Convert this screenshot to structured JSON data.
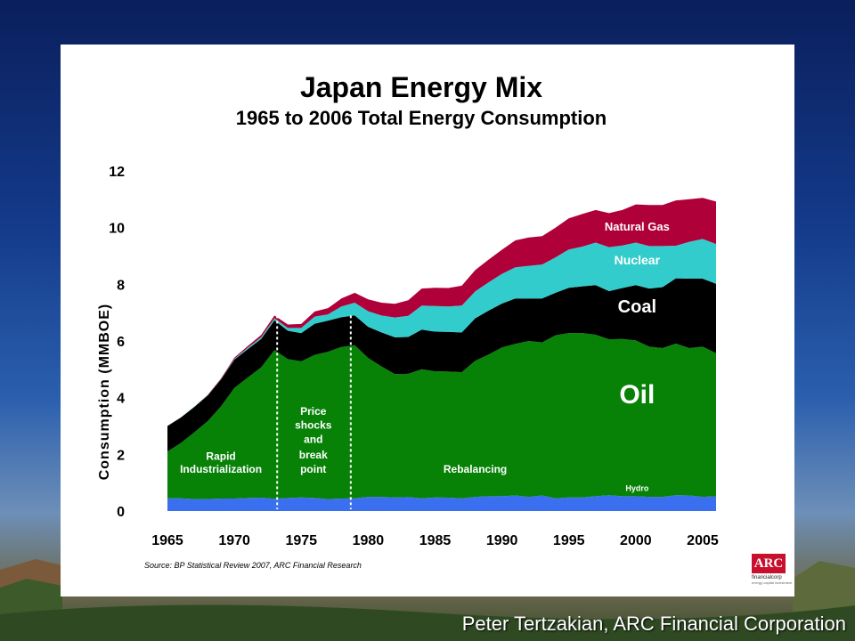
{
  "title": "Japan Energy Mix",
  "subtitle": "1965 to 2006 Total Energy Consumption",
  "source": "Source: BP Statistical Review 2007, ARC Financial Research",
  "footer": "Peter Tertzakian, ARC Financial Corporation",
  "logo": {
    "text": "ARC",
    "sub": "financialcorp",
    "tag": "energy capital investment"
  },
  "chart_data": {
    "type": "area",
    "stacked": true,
    "ylabel": "Consumption (MMBOE)",
    "xlabel": "",
    "ylim": [
      0,
      12
    ],
    "xlim": [
      1965,
      2006
    ],
    "yticks": [
      "0",
      "2",
      "4",
      "6",
      "8",
      "10",
      "12"
    ],
    "xticks": [
      "1965",
      "1970",
      "1975",
      "1980",
      "1985",
      "1990",
      "1995",
      "2000",
      "2005"
    ],
    "grid": false,
    "legend": "inline labels",
    "x": [
      1965,
      1966,
      1967,
      1968,
      1969,
      1970,
      1971,
      1972,
      1973,
      1974,
      1975,
      1976,
      1977,
      1978,
      1979,
      1980,
      1981,
      1982,
      1983,
      1984,
      1985,
      1986,
      1987,
      1988,
      1989,
      1990,
      1991,
      1992,
      1993,
      1994,
      1995,
      1996,
      1997,
      1998,
      1999,
      2000,
      2001,
      2002,
      2003,
      2004,
      2005,
      2006
    ],
    "series": [
      {
        "name": "Hydro",
        "color": "#3a6ff0",
        "values": [
          0.45,
          0.45,
          0.42,
          0.42,
          0.44,
          0.44,
          0.46,
          0.47,
          0.43,
          0.46,
          0.48,
          0.46,
          0.42,
          0.44,
          0.45,
          0.5,
          0.5,
          0.48,
          0.49,
          0.45,
          0.48,
          0.47,
          0.45,
          0.5,
          0.52,
          0.52,
          0.55,
          0.5,
          0.55,
          0.45,
          0.48,
          0.48,
          0.52,
          0.56,
          0.52,
          0.52,
          0.5,
          0.5,
          0.56,
          0.55,
          0.5,
          0.52
        ]
      },
      {
        "name": "Oil",
        "color": "#078207",
        "values": [
          1.65,
          1.95,
          2.35,
          2.75,
          3.25,
          3.9,
          4.25,
          4.6,
          5.25,
          4.9,
          4.8,
          5.05,
          5.2,
          5.35,
          5.4,
          4.9,
          4.6,
          4.35,
          4.35,
          4.55,
          4.45,
          4.45,
          4.45,
          4.8,
          5.0,
          5.25,
          5.35,
          5.5,
          5.4,
          5.75,
          5.8,
          5.8,
          5.7,
          5.5,
          5.55,
          5.5,
          5.3,
          5.25,
          5.35,
          5.2,
          5.3,
          5.05
        ]
      },
      {
        "name": "Coal",
        "color": "#000000",
        "values": [
          0.9,
          0.9,
          0.9,
          0.9,
          0.95,
          1.0,
          1.0,
          1.0,
          1.05,
          1.0,
          1.0,
          1.1,
          1.1,
          1.05,
          1.05,
          1.1,
          1.2,
          1.3,
          1.3,
          1.4,
          1.4,
          1.4,
          1.4,
          1.5,
          1.55,
          1.55,
          1.6,
          1.5,
          1.55,
          1.5,
          1.6,
          1.65,
          1.75,
          1.7,
          1.8,
          1.95,
          2.05,
          2.15,
          2.3,
          2.45,
          2.4,
          2.45
        ]
      },
      {
        "name": "Nuclear",
        "color": "#33cccc",
        "values": [
          0.0,
          0.0,
          0.01,
          0.01,
          0.01,
          0.03,
          0.05,
          0.06,
          0.07,
          0.1,
          0.18,
          0.25,
          0.22,
          0.38,
          0.45,
          0.55,
          0.6,
          0.7,
          0.75,
          0.85,
          0.9,
          0.9,
          0.95,
          0.95,
          1.0,
          1.05,
          1.1,
          1.15,
          1.2,
          1.25,
          1.35,
          1.4,
          1.5,
          1.55,
          1.5,
          1.5,
          1.5,
          1.45,
          1.15,
          1.3,
          1.4,
          1.4
        ]
      },
      {
        "name": "Natural Gas",
        "color": "#b0003a",
        "values": [
          0.0,
          0.0,
          0.0,
          0.01,
          0.02,
          0.04,
          0.06,
          0.08,
          0.1,
          0.12,
          0.14,
          0.18,
          0.22,
          0.28,
          0.35,
          0.42,
          0.45,
          0.48,
          0.55,
          0.6,
          0.65,
          0.65,
          0.7,
          0.75,
          0.8,
          0.85,
          0.95,
          1.0,
          1.0,
          1.05,
          1.1,
          1.15,
          1.15,
          1.2,
          1.25,
          1.35,
          1.45,
          1.45,
          1.6,
          1.5,
          1.45,
          1.5
        ]
      }
    ],
    "annotations": {
      "dividers": [
        1973.2,
        1978.7
      ],
      "labels": [
        {
          "text": "Rapid",
          "x": 1969.0,
          "y": 1.8
        },
        {
          "text": "Industrialization",
          "x": 1969.0,
          "y": 1.35
        },
        {
          "text": "Price",
          "x": 1975.9,
          "y": 3.4
        },
        {
          "text": "shocks",
          "x": 1975.9,
          "y": 2.9
        },
        {
          "text": "and",
          "x": 1975.9,
          "y": 2.4
        },
        {
          "text": "break",
          "x": 1975.9,
          "y": 1.85
        },
        {
          "text": "point",
          "x": 1975.9,
          "y": 1.35
        },
        {
          "text": "Rebalancing",
          "x": 1988.0,
          "y": 1.35
        }
      ],
      "series_labels": [
        {
          "series": "Hydro",
          "text": "Hydro",
          "x": 2000.1,
          "y": 0.7
        },
        {
          "series": "Oil",
          "text": "Oil",
          "x": 2000.1,
          "y": 3.8
        },
        {
          "series": "Coal",
          "text": "Coal",
          "x": 2000.1,
          "y": 7.0
        },
        {
          "series": "Nuclear",
          "text": "Nuclear",
          "x": 2000.1,
          "y": 8.7
        },
        {
          "series": "Natural Gas",
          "text": "Natural Gas",
          "x": 2000.1,
          "y": 9.9
        }
      ]
    }
  }
}
